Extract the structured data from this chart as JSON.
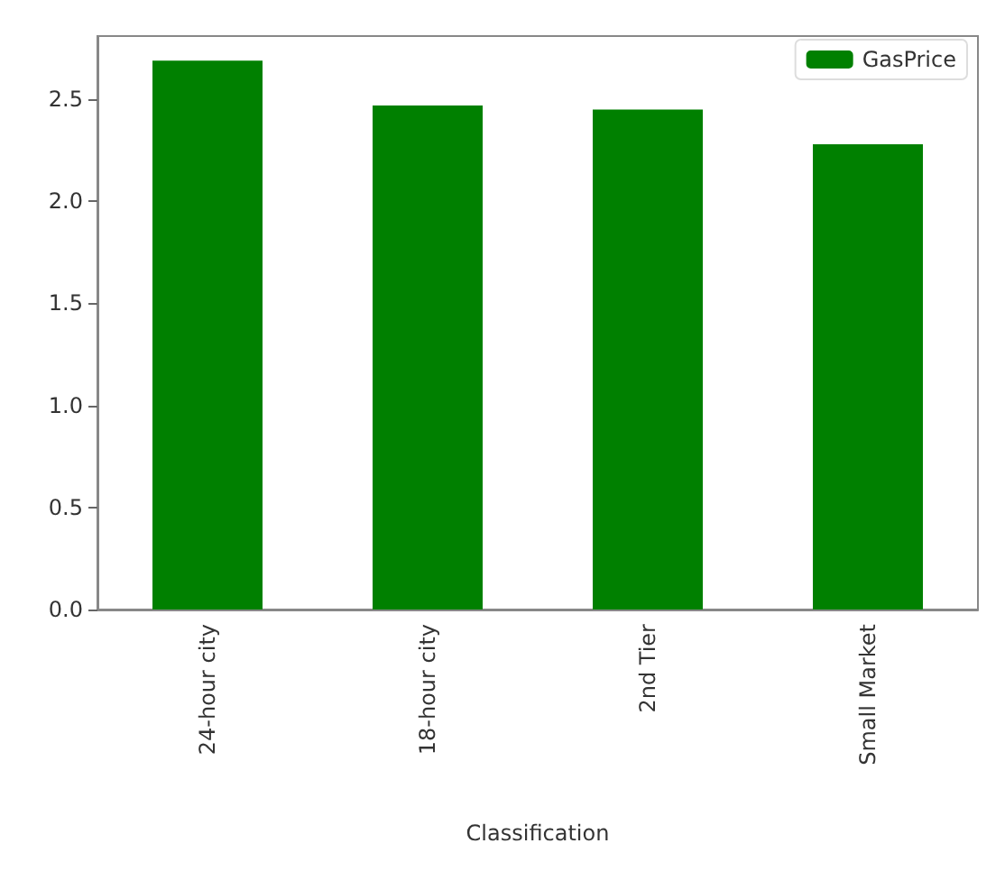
{
  "chart_data": {
    "type": "bar",
    "xlabel": "Classification",
    "categories": [
      "24-hour city",
      "18-hour city",
      "2nd Tier",
      "Small Market"
    ],
    "series": [
      {
        "name": "GasPrice",
        "color": "#008000",
        "values": [
          2.69,
          2.47,
          2.45,
          2.28
        ]
      }
    ],
    "ylim": [
      0,
      2.81
    ],
    "yticks": [
      {
        "value": 0,
        "label": "0.0"
      },
      0.5,
      {
        "value": 1,
        "label": "1.0"
      },
      1.5,
      {
        "value": 2,
        "label": "2.0"
      },
      2.5
    ],
    "grid": false,
    "legend": "top right"
  }
}
